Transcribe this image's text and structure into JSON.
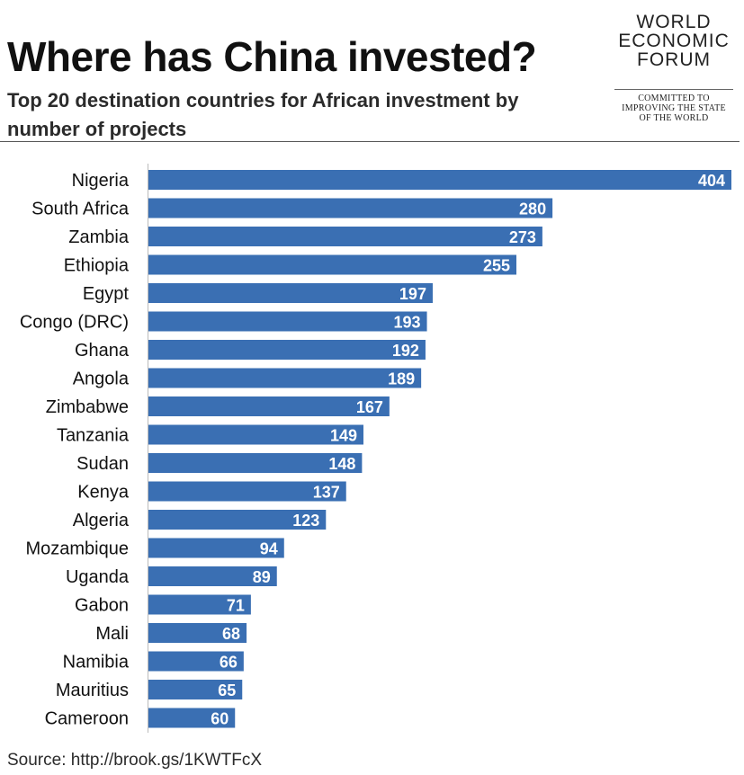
{
  "header": {
    "title": "Where has China invested?",
    "subtitle": "Top 20 destination countries for African investment by number of projects"
  },
  "logo": {
    "lines": [
      "WORLD",
      "ECONOMIC",
      "FORUM"
    ],
    "tagline": [
      "COMMITTED TO",
      "IMPROVING THE STATE",
      "OF THE WORLD"
    ]
  },
  "footer": {
    "source": "Source: http://brook.gs/1KWTFcX"
  },
  "colors": {
    "bar": "#3a6fb3",
    "value_label": "#ffffff"
  },
  "chart_data": {
    "type": "bar",
    "orientation": "horizontal",
    "categories": [
      "Nigeria",
      "South Africa",
      "Zambia",
      "Ethiopia",
      "Egypt",
      "Congo (DRC)",
      "Ghana",
      "Angola",
      "Zimbabwe",
      "Tanzania",
      "Sudan",
      "Kenya",
      "Algeria",
      "Mozambique",
      "Uganda",
      "Gabon",
      "Mali",
      "Namibia",
      "Mauritius",
      "Cameroon"
    ],
    "values": [
      404,
      280,
      273,
      255,
      197,
      193,
      192,
      189,
      167,
      149,
      148,
      137,
      123,
      94,
      89,
      71,
      68,
      66,
      65,
      60
    ],
    "title": "Where has China invested?",
    "subtitle": "Top 20 destination countries for African investment by number of projects",
    "xlabel": "",
    "ylabel": "",
    "xlim": [
      0,
      404
    ],
    "grid": false,
    "data_labels": true
  }
}
